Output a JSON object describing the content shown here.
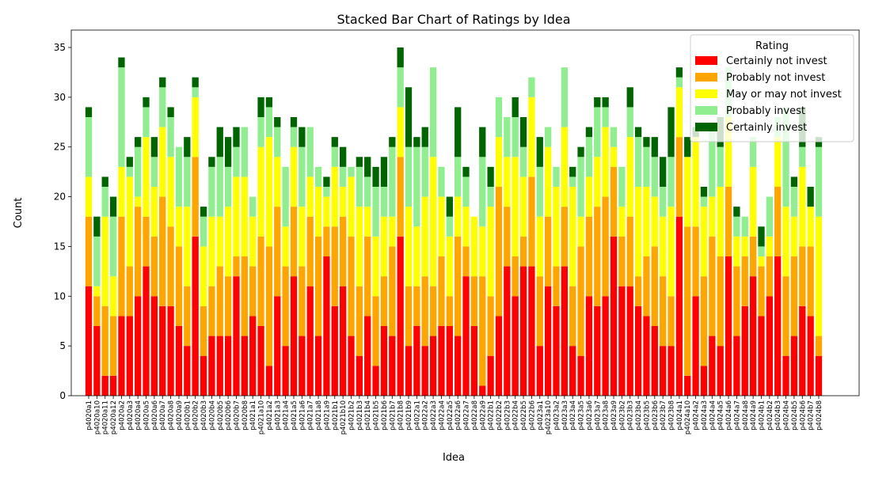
{
  "chart_data": {
    "type": "stacked_bar",
    "title": "Stacked Bar Chart of Ratings by Idea",
    "xlabel": "Idea",
    "ylabel": "Count",
    "legend_title": "Rating",
    "legend": "upper right",
    "categories": [
      "p4020a1",
      "p4020a10",
      "p4020a11",
      "p4020a12",
      "p4020a2",
      "p4020a3",
      "p4020a4",
      "p4020a5",
      "p4020a6",
      "p4020a7",
      "p4020a8",
      "p4020a9",
      "p4020b1",
      "p4020b2",
      "p4020b3",
      "p4020b4",
      "p4020b5",
      "p4020b6",
      "p4020b7",
      "p4020b8",
      "p4021a1",
      "p4021a10",
      "p4021a2",
      "p4021a3",
      "p4021a4",
      "p4021a5",
      "p4021a6",
      "p4021a7",
      "p4021a8",
      "p4021a9",
      "p4021b1",
      "p4021b10",
      "p4021b2",
      "p4021b3",
      "p4021b4",
      "p4021b5",
      "p4021b6",
      "p4021b7",
      "p4021b8",
      "p4021b9",
      "p4022a1",
      "p4022a2",
      "p4022a3",
      "p4022a4",
      "p4022a5",
      "p4022a6",
      "p4022a7",
      "p4022a8",
      "p4022a9",
      "p4022b1",
      "p4022b2",
      "p4022b3",
      "p4022b4",
      "p4022b5",
      "p4022b6",
      "p4023a1",
      "p4023a10",
      "p4023a2",
      "p4023a3",
      "p4023a4",
      "p4023a5",
      "p4023a6",
      "p4023a7",
      "p4023a8",
      "p4023a9",
      "p4023b2",
      "p4023b3",
      "p4023b4",
      "p4023b5",
      "p4023b6",
      "p4023b7",
      "p4023b8",
      "p4024a1",
      "p4024a10",
      "p4024a2",
      "p4024a3",
      "p4024a4",
      "p4024a5",
      "p4024a6",
      "p4024a7",
      "p4024a8",
      "p4024a9",
      "p4024b1",
      "p4024b2",
      "p4024b3",
      "p4024b4",
      "p4024b5",
      "p4024b6",
      "p4024b7",
      "p4024b8"
    ],
    "series": [
      {
        "name": "Certainly not invest",
        "color": "#ff0000",
        "values": [
          11,
          7,
          2,
          2,
          8,
          8,
          10,
          13,
          10,
          9,
          9,
          7,
          5,
          16,
          4,
          6,
          6,
          6,
          12,
          6,
          8,
          7,
          3,
          10,
          5,
          12,
          6,
          11,
          6,
          14,
          9,
          11,
          6,
          4,
          8,
          3,
          7,
          6,
          16,
          5,
          7,
          5,
          6,
          7,
          7,
          6,
          12,
          7,
          1,
          4,
          8,
          13,
          10,
          13,
          13,
          5,
          11,
          9,
          13,
          5,
          4,
          10,
          9,
          10,
          16,
          11,
          11,
          9,
          8,
          7,
          5,
          5,
          18,
          2,
          10,
          3,
          6,
          5,
          14,
          6,
          9,
          12,
          8,
          10,
          14,
          4,
          6,
          9,
          8,
          4
        ]
      },
      {
        "name": "Probably not invest",
        "color": "#ffa500",
        "values": [
          7,
          3,
          7,
          6,
          10,
          5,
          9,
          5,
          6,
          11,
          8,
          8,
          6,
          8,
          5,
          5,
          7,
          6,
          2,
          8,
          5,
          9,
          12,
          9,
          8,
          7,
          7,
          7,
          10,
          3,
          8,
          7,
          10,
          7,
          8,
          7,
          5,
          9,
          8,
          6,
          4,
          7,
          5,
          7,
          3,
          10,
          3,
          5,
          11,
          6,
          13,
          6,
          4,
          3,
          9,
          7,
          7,
          4,
          6,
          6,
          11,
          8,
          10,
          10,
          7,
          5,
          7,
          3,
          6,
          8,
          7,
          5,
          8,
          15,
          7,
          9,
          10,
          9,
          7,
          7,
          5,
          4,
          5,
          4,
          7,
          8,
          8,
          6,
          7,
          2
        ]
      },
      {
        "name": "May or may not invest",
        "color": "#ffff00",
        "values": [
          4,
          1,
          9,
          4,
          5,
          9,
          1,
          8,
          5,
          7,
          7,
          4,
          8,
          6,
          6,
          7,
          5,
          7,
          8,
          8,
          5,
          9,
          11,
          5,
          4,
          6,
          6,
          4,
          5,
          3,
          6,
          3,
          6,
          8,
          3,
          6,
          6,
          3,
          5,
          8,
          6,
          8,
          13,
          6,
          6,
          4,
          4,
          6,
          5,
          9,
          5,
          5,
          10,
          6,
          8,
          6,
          7,
          8,
          8,
          10,
          3,
          4,
          5,
          7,
          2,
          3,
          8,
          9,
          7,
          5,
          6,
          9,
          5,
          7,
          9,
          7,
          4,
          7,
          7,
          3,
          2,
          7,
          1,
          2,
          5,
          7,
          4,
          8,
          4,
          12
        ]
      },
      {
        "name": "Probably invest",
        "color": "#90ee90",
        "values": [
          6,
          5,
          3,
          6,
          10,
          1,
          5,
          3,
          3,
          4,
          4,
          6,
          5,
          1,
          3,
          5,
          6,
          4,
          3,
          5,
          2,
          3,
          3,
          3,
          6,
          2,
          6,
          5,
          2,
          1,
          2,
          2,
          1,
          4,
          3,
          5,
          3,
          7,
          4,
          6,
          8,
          5,
          9,
          3,
          2,
          4,
          3,
          0,
          7,
          2,
          4,
          4,
          4,
          3,
          2,
          5,
          2,
          2,
          6,
          1,
          6,
          4,
          5,
          2,
          2,
          4,
          3,
          5,
          4,
          4,
          3,
          5,
          1,
          0,
          0,
          1,
          7,
          4,
          5,
          2,
          2,
          3,
          1,
          4,
          2,
          10,
          3,
          2,
          0,
          7
        ]
      },
      {
        "name": "Certainly invest",
        "color": "#006400",
        "values": [
          1,
          2,
          1,
          2,
          1,
          1,
          1,
          1,
          2,
          1,
          1,
          0,
          2,
          1,
          1,
          1,
          3,
          3,
          2,
          0,
          0,
          2,
          1,
          1,
          0,
          1,
          2,
          0,
          0,
          1,
          1,
          2,
          0,
          1,
          2,
          2,
          3,
          1,
          2,
          6,
          1,
          2,
          0,
          0,
          2,
          5,
          1,
          0,
          3,
          2,
          0,
          0,
          2,
          3,
          0,
          3,
          0,
          0,
          0,
          1,
          1,
          1,
          1,
          1,
          0,
          0,
          2,
          1,
          1,
          2,
          3,
          5,
          1,
          2,
          1,
          1,
          0,
          3,
          0,
          1,
          0,
          0,
          2,
          0,
          0,
          0,
          1,
          4,
          2,
          1
        ]
      }
    ],
    "ylim": [
      0,
      36.75
    ],
    "yticks": [
      0,
      5,
      10,
      15,
      20,
      25,
      30,
      35
    ]
  }
}
